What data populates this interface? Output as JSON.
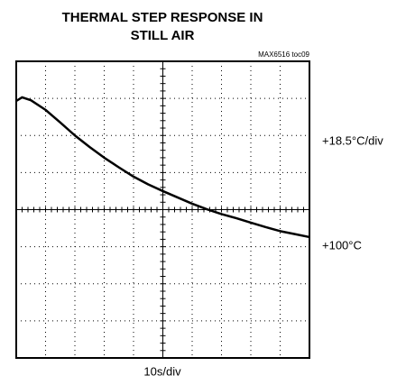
{
  "chart_data": {
    "type": "line",
    "title": [
      "THERMAL STEP RESPONSE IN",
      "STILL AIR"
    ],
    "annotations": [
      "MAX6516 toc09",
      "+18.5°C/div",
      "+100°C"
    ],
    "x_label": "10s/div",
    "x": [
      0,
      0.2,
      0.5,
      1,
      1.5,
      2,
      2.5,
      3,
      3.5,
      4,
      4.5,
      5,
      5.5,
      6,
      6.5,
      7,
      7.5,
      8,
      8.5,
      9,
      9.5,
      10
    ],
    "values": [
      6.93,
      7.03,
      6.95,
      6.69,
      6.35,
      6.0,
      5.69,
      5.4,
      5.14,
      4.89,
      4.68,
      4.5,
      4.33,
      4.16,
      4.01,
      3.88,
      3.77,
      3.65,
      3.53,
      3.42,
      3.34,
      3.26
    ],
    "color": "#000000",
    "xlim": [
      0,
      10
    ],
    "ylim": [
      0,
      8
    ]
  }
}
